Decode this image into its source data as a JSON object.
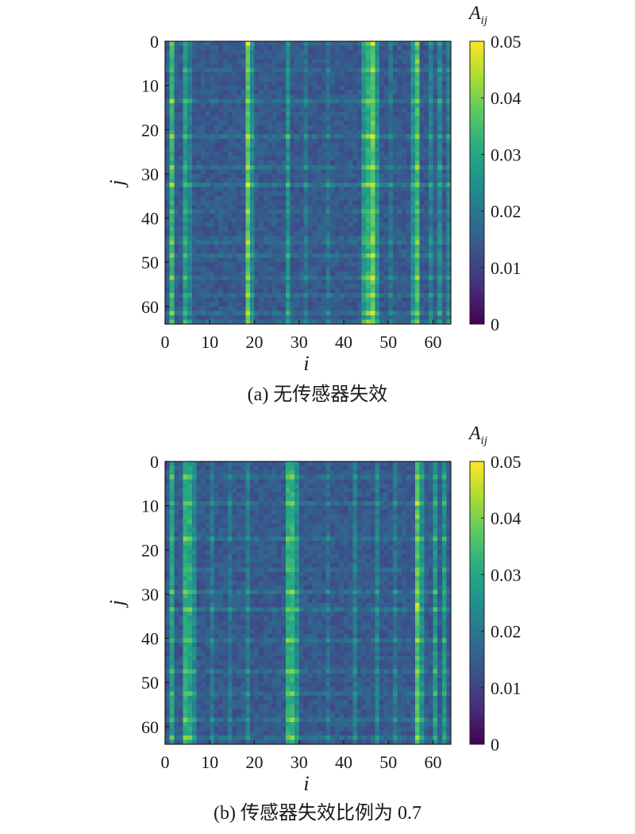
{
  "colormap": "viridis",
  "chart_data": [
    {
      "type": "heatmap",
      "title": "(a) 无传感器失效",
      "xlabel": "i",
      "ylabel": "j",
      "colorbar_label": "A_ij",
      "colorbar_label_main": "A",
      "colorbar_label_sub": "ij",
      "n_rows": 64,
      "n_cols": 64,
      "xlim": [
        0,
        64
      ],
      "ylim": [
        0,
        64
      ],
      "y_inverted": true,
      "vmin": 0,
      "vmax": 0.05,
      "colorbar_ticks": [
        "0",
        "0.01",
        "0.02",
        "0.03",
        "0.04",
        "0.05"
      ],
      "xticks": [
        "0",
        "10",
        "20",
        "30",
        "40",
        "50",
        "60"
      ],
      "yticks": [
        "0",
        "10",
        "20",
        "30",
        "40",
        "50",
        "60"
      ],
      "base_value": 0.014,
      "column_strength": [
        {
          "index": 1,
          "value": 0.034
        },
        {
          "index": 4,
          "value": 0.029
        },
        {
          "index": 5,
          "value": 0.022
        },
        {
          "index": 18,
          "value": 0.039
        },
        {
          "index": 19,
          "value": 0.024
        },
        {
          "index": 27,
          "value": 0.026
        },
        {
          "index": 31,
          "value": 0.019
        },
        {
          "index": 36,
          "value": 0.018
        },
        {
          "index": 44,
          "value": 0.028
        },
        {
          "index": 45,
          "value": 0.033
        },
        {
          "index": 46,
          "value": 0.04
        },
        {
          "index": 47,
          "value": 0.025
        },
        {
          "index": 50,
          "value": 0.019
        },
        {
          "index": 55,
          "value": 0.026
        },
        {
          "index": 56,
          "value": 0.036
        },
        {
          "index": 59,
          "value": 0.022
        },
        {
          "index": 61,
          "value": 0.024
        },
        {
          "index": 63,
          "value": 0.022
        }
      ],
      "row_strength": [
        {
          "index": 0,
          "value": 0.018
        },
        {
          "index": 6,
          "value": 0.018
        },
        {
          "index": 13,
          "value": 0.021
        },
        {
          "index": 21,
          "value": 0.022
        },
        {
          "index": 28,
          "value": 0.02
        },
        {
          "index": 32,
          "value": 0.023
        },
        {
          "index": 38,
          "value": 0.018
        },
        {
          "index": 44,
          "value": 0.017
        },
        {
          "index": 45,
          "value": 0.019
        },
        {
          "index": 48,
          "value": 0.02
        },
        {
          "index": 53,
          "value": 0.02
        },
        {
          "index": 57,
          "value": 0.019
        },
        {
          "index": 61,
          "value": 0.021
        },
        {
          "index": 63,
          "value": 0.02
        }
      ],
      "peak_cells": [
        {
          "i": 18,
          "j": 0,
          "value": 0.05
        },
        {
          "i": 46,
          "j": 0,
          "value": 0.049
        },
        {
          "i": 18,
          "j": 32,
          "value": 0.049
        },
        {
          "i": 46,
          "j": 32,
          "value": 0.046
        },
        {
          "i": 1,
          "j": 32,
          "value": 0.045
        },
        {
          "i": 56,
          "j": 4,
          "value": 0.042
        },
        {
          "i": 18,
          "j": 13,
          "value": 0.043
        },
        {
          "i": 46,
          "j": 13,
          "value": 0.04
        },
        {
          "i": 56,
          "j": 32,
          "value": 0.041
        },
        {
          "i": 46,
          "j": 63,
          "value": 0.04
        },
        {
          "i": 18,
          "j": 63,
          "value": 0.04
        }
      ]
    },
    {
      "type": "heatmap",
      "title": "(b) 传感器失效比例为 0.7",
      "xlabel": "i",
      "ylabel": "j",
      "colorbar_label": "A_ij",
      "colorbar_label_main": "A",
      "colorbar_label_sub": "ij",
      "n_rows": 64,
      "n_cols": 64,
      "xlim": [
        0,
        64
      ],
      "ylim": [
        0,
        64
      ],
      "y_inverted": true,
      "vmin": 0,
      "vmax": 0.05,
      "colorbar_ticks": [
        "0",
        "0.01",
        "0.02",
        "0.03",
        "0.04",
        "0.05"
      ],
      "xticks": [
        "0",
        "10",
        "20",
        "30",
        "40",
        "50",
        "60"
      ],
      "yticks": [
        "0",
        "10",
        "20",
        "30",
        "40",
        "50",
        "60"
      ],
      "base_value": 0.014,
      "column_strength": [
        {
          "index": 1,
          "value": 0.03
        },
        {
          "index": 4,
          "value": 0.033
        },
        {
          "index": 5,
          "value": 0.031
        },
        {
          "index": 6,
          "value": 0.024
        },
        {
          "index": 10,
          "value": 0.02
        },
        {
          "index": 14,
          "value": 0.019
        },
        {
          "index": 18,
          "value": 0.021
        },
        {
          "index": 27,
          "value": 0.033
        },
        {
          "index": 28,
          "value": 0.034
        },
        {
          "index": 29,
          "value": 0.025
        },
        {
          "index": 36,
          "value": 0.018
        },
        {
          "index": 42,
          "value": 0.021
        },
        {
          "index": 47,
          "value": 0.022
        },
        {
          "index": 51,
          "value": 0.02
        },
        {
          "index": 56,
          "value": 0.038
        },
        {
          "index": 57,
          "value": 0.026
        },
        {
          "index": 60,
          "value": 0.028
        },
        {
          "index": 62,
          "value": 0.027
        }
      ],
      "row_strength": [
        {
          "index": 3,
          "value": 0.019
        },
        {
          "index": 9,
          "value": 0.02
        },
        {
          "index": 17,
          "value": 0.021
        },
        {
          "index": 24,
          "value": 0.018
        },
        {
          "index": 29,
          "value": 0.021
        },
        {
          "index": 33,
          "value": 0.022
        },
        {
          "index": 40,
          "value": 0.02
        },
        {
          "index": 47,
          "value": 0.02
        },
        {
          "index": 52,
          "value": 0.019
        },
        {
          "index": 58,
          "value": 0.02
        },
        {
          "index": 62,
          "value": 0.021
        }
      ],
      "peak_cells": [
        {
          "i": 56,
          "j": 32,
          "value": 0.047
        },
        {
          "i": 56,
          "j": 12,
          "value": 0.042
        },
        {
          "i": 56,
          "j": 25,
          "value": 0.041
        },
        {
          "i": 56,
          "j": 40,
          "value": 0.044
        },
        {
          "i": 56,
          "j": 52,
          "value": 0.04
        },
        {
          "i": 28,
          "j": 33,
          "value": 0.036
        },
        {
          "i": 5,
          "j": 13,
          "value": 0.035
        },
        {
          "i": 5,
          "j": 29,
          "value": 0.035
        }
      ]
    }
  ]
}
